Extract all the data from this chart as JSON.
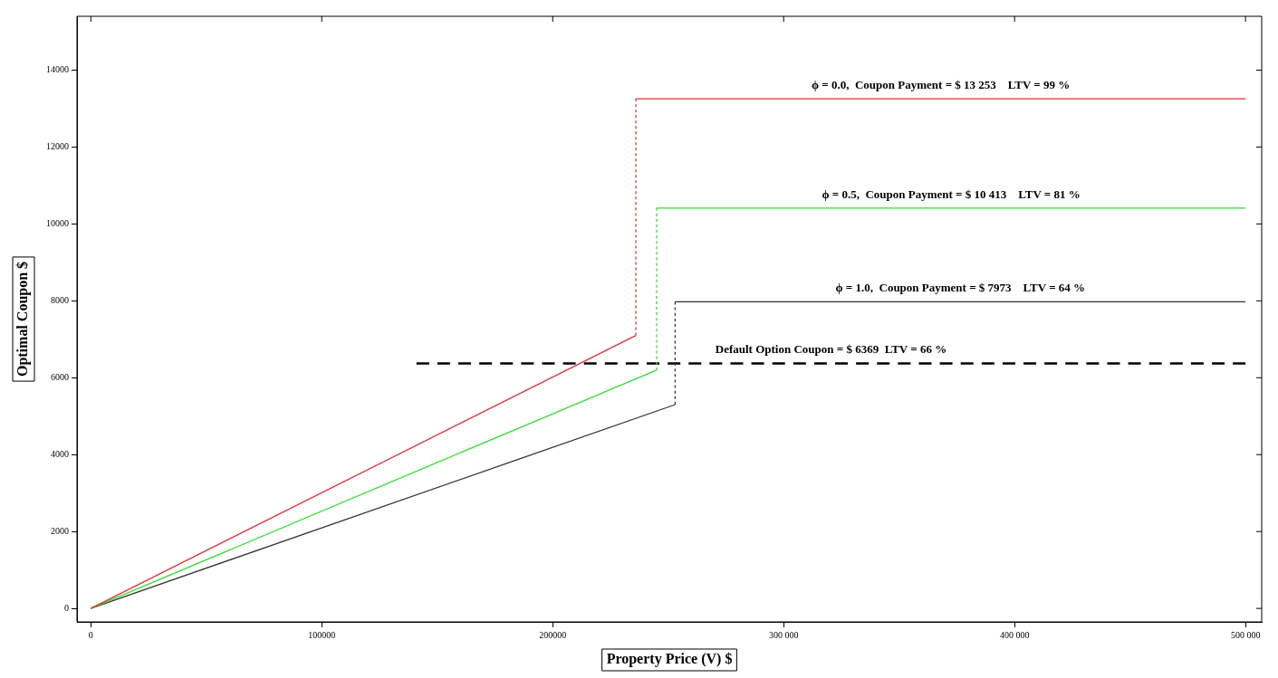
{
  "chart_data": {
    "type": "line",
    "xlabel": "Property Price (V) $",
    "ylabel": "Optimal Coupon $",
    "xlim": [
      -6000,
      507000
    ],
    "ylim": [
      -350,
      15400
    ],
    "xticks": [
      0,
      100000,
      200000,
      {
        "value": 300000,
        "label": "300 000"
      },
      {
        "value": 400000,
        "label": "400 000"
      },
      {
        "value": 500000,
        "label": "500 000"
      }
    ],
    "yticks": [
      0,
      2000,
      4000,
      6000,
      8000,
      10000,
      12000,
      14000
    ],
    "grid": false,
    "legend": false,
    "marker": "none",
    "series": [
      {
        "color": "#e03030",
        "line_style": "solid",
        "x": [
          0,
          236000
        ],
        "values": [
          0,
          7100
        ]
      },
      {
        "color": "#e03030",
        "line_style": "dotted",
        "x": [
          236000,
          236000
        ],
        "values": [
          7100,
          13253
        ]
      },
      {
        "name": "ϕ = 0.0,  Coupon Payment = $ 13 253    LTV = 99 %",
        "color": "#e03030",
        "line_style": "solid",
        "x": [
          236000,
          500000
        ],
        "values": [
          13253,
          13253
        ]
      },
      {
        "color": "#33dd33",
        "line_style": "solid",
        "x": [
          0,
          245000
        ],
        "values": [
          0,
          6200
        ]
      },
      {
        "color": "#33dd33",
        "line_style": "dotted",
        "x": [
          245000,
          245000
        ],
        "values": [
          6200,
          10413
        ]
      },
      {
        "name": "ϕ = 0.5,  Coupon Payment = $ 10 413    LTV = 81 %",
        "color": "#33dd33",
        "line_style": "solid",
        "x": [
          245000,
          500000
        ],
        "values": [
          10413,
          10413
        ]
      },
      {
        "color": "#333333",
        "line_style": "solid",
        "x": [
          0,
          253000
        ],
        "values": [
          0,
          5300
        ]
      },
      {
        "color": "#333333",
        "line_style": "dotted",
        "x": [
          253000,
          253000
        ],
        "values": [
          5300,
          7973
        ]
      },
      {
        "name": "ϕ = 1.0,  Coupon Payment = $ 7973    LTV = 64 %",
        "color": "#333333",
        "line_style": "solid",
        "x": [
          253000,
          500000
        ],
        "values": [
          7973,
          7973
        ]
      },
      {
        "name": "Default Option Coupon = $ 6369  LTV = 66 %",
        "color": "#000000",
        "line_style": "dashed",
        "x": [
          141000,
          500000
        ],
        "values": [
          6369,
          6369
        ]
      }
    ]
  }
}
